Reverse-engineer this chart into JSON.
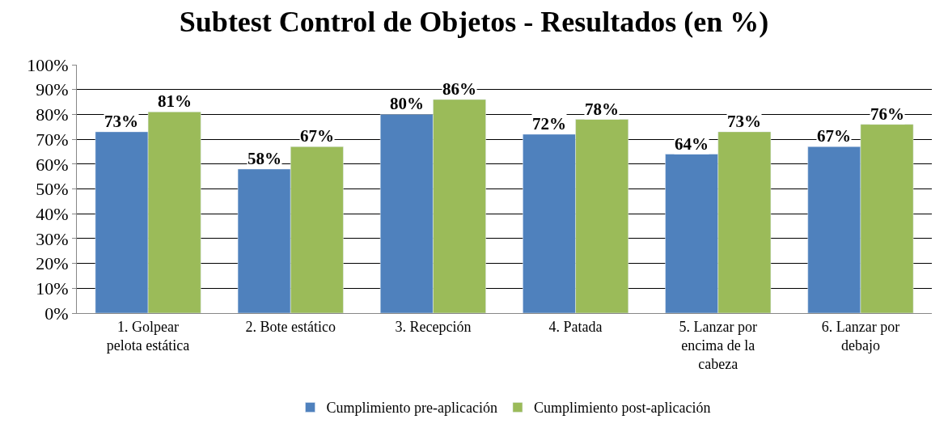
{
  "chart_data": {
    "type": "bar",
    "title": "Subtest Control de Objetos - Resultados (en %)",
    "categories": [
      "1. Golpear pelota estática",
      "2. Bote estático",
      "3. Recepción",
      "4. Patada",
      "5. Lanzar por encima de la cabeza",
      "6. Lanzar por debajo"
    ],
    "series": [
      {
        "name": "Cumplimiento pre-aplicación",
        "color": "#4f81bd",
        "values": [
          73,
          58,
          80,
          72,
          64,
          67
        ],
        "value_labels": [
          "73%",
          "58%",
          "80%",
          "72%",
          "64%",
          "67%"
        ]
      },
      {
        "name": "Cumplimiento post-aplicación",
        "color": "#9bbb59",
        "values": [
          81,
          67,
          86,
          78,
          73,
          76
        ],
        "value_labels": [
          "81%",
          "67%",
          "86%",
          "78%",
          "73%",
          "76%"
        ]
      }
    ],
    "ylim": [
      0,
      100
    ],
    "yticks": [
      {
        "value": 0,
        "label": "0%"
      },
      {
        "value": 10,
        "label": "10%"
      },
      {
        "value": 20,
        "label": "20%"
      },
      {
        "value": 30,
        "label": "30%"
      },
      {
        "value": 40,
        "label": "40%"
      },
      {
        "value": 50,
        "label": "50%"
      },
      {
        "value": 60,
        "label": "60%"
      },
      {
        "value": 70,
        "label": "70%"
      },
      {
        "value": 80,
        "label": "80%"
      },
      {
        "value": 90,
        "label": "90%"
      },
      {
        "value": 100,
        "label": "100%"
      }
    ],
    "grid": "y",
    "legend": "bottom"
  }
}
